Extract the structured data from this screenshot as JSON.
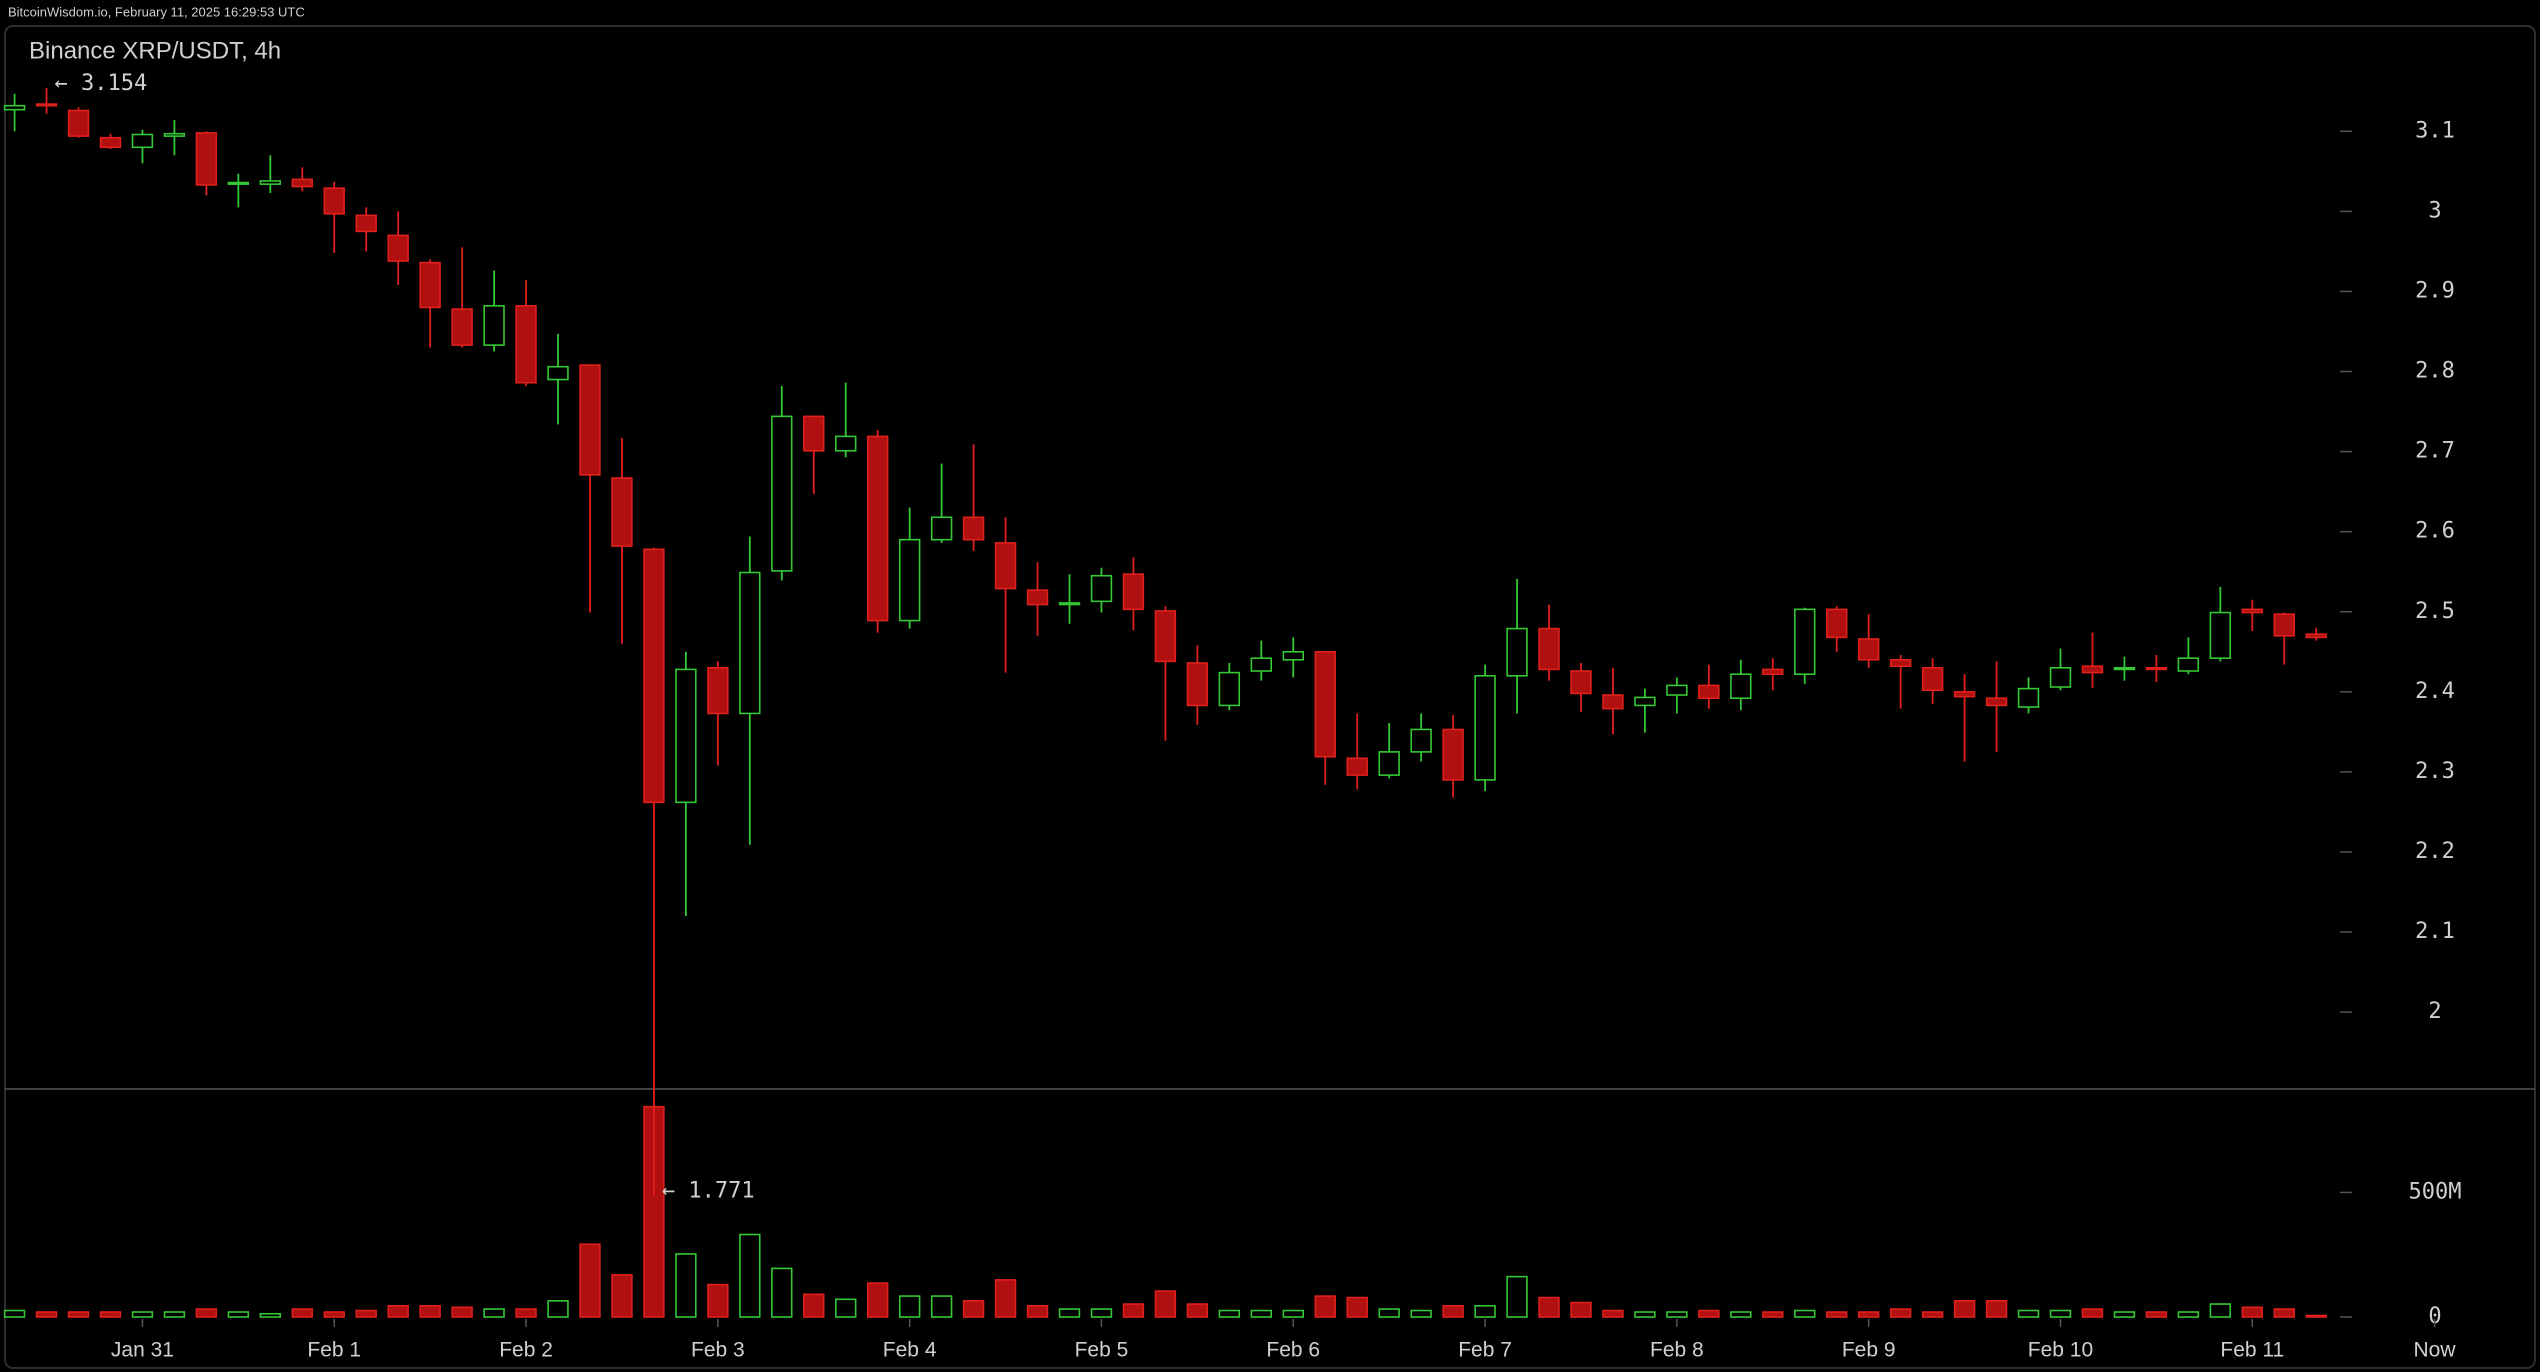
{
  "chart_data": {
    "type": "candlestick",
    "source": "BitcoinWisdom.io, February 11, 2025 16:29:53 UTC",
    "title": "Binance XRP/USDT, 4h",
    "up_color": "#34c834",
    "down_color": "#e0201c",
    "down_fill": "#b01010",
    "open": [
      3.127,
      3.134,
      3.126,
      3.092,
      3.08,
      3.094,
      3.098,
      3.034,
      3.034,
      3.04,
      3.029,
      2.995,
      2.97,
      2.936,
      2.878,
      2.833,
      2.882,
      2.79,
      2.808,
      2.667,
      2.578,
      2.262,
      2.43,
      2.373,
      2.551,
      2.744,
      2.701,
      2.719,
      2.489,
      2.59,
      2.618,
      2.586,
      2.527,
      2.509,
      2.513,
      2.547,
      2.501,
      2.436,
      2.383,
      2.426,
      2.44,
      2.45,
      2.317,
      2.296,
      2.325,
      2.353,
      2.29,
      2.42,
      2.479,
      2.426,
      2.396,
      2.383,
      2.396,
      2.408,
      2.392,
      2.428,
      2.422,
      2.503,
      2.466,
      2.44,
      2.43,
      2.4,
      2.392,
      2.381,
      2.406,
      2.432,
      2.428,
      2.43,
      2.426,
      2.442,
      2.503,
      2.497,
      2.472
    ],
    "high": [
      3.147,
      3.154,
      3.13,
      3.097,
      3.102,
      3.114,
      3.1,
      3.047,
      3.07,
      3.055,
      3.037,
      3.005,
      3.0,
      2.94,
      2.955,
      2.926,
      2.914,
      2.847,
      2.808,
      2.717,
      2.58,
      2.45,
      2.438,
      2.594,
      2.782,
      2.744,
      2.786,
      2.727,
      2.63,
      2.685,
      2.709,
      2.618,
      2.562,
      2.547,
      2.555,
      2.568,
      2.507,
      2.458,
      2.436,
      2.464,
      2.468,
      2.45,
      2.373,
      2.361,
      2.373,
      2.371,
      2.434,
      2.541,
      2.509,
      2.436,
      2.43,
      2.404,
      2.418,
      2.434,
      2.44,
      2.442,
      2.505,
      2.507,
      2.497,
      2.446,
      2.442,
      2.422,
      2.438,
      2.418,
      2.454,
      2.474,
      2.444,
      2.446,
      2.468,
      2.531,
      2.515,
      2.499,
      2.48
    ],
    "low": [
      3.1,
      3.122,
      3.092,
      3.078,
      3.06,
      3.07,
      3.02,
      3.005,
      3.023,
      3.025,
      2.948,
      2.95,
      2.908,
      2.83,
      2.83,
      2.825,
      2.782,
      2.734,
      2.499,
      2.46,
      1.771,
      2.12,
      2.308,
      2.209,
      2.539,
      2.647,
      2.693,
      2.474,
      2.479,
      2.586,
      2.576,
      2.424,
      2.47,
      2.485,
      2.499,
      2.477,
      2.339,
      2.359,
      2.377,
      2.414,
      2.418,
      2.284,
      2.278,
      2.292,
      2.313,
      2.268,
      2.276,
      2.373,
      2.414,
      2.375,
      2.347,
      2.349,
      2.373,
      2.379,
      2.377,
      2.402,
      2.41,
      2.45,
      2.43,
      2.379,
      2.385,
      2.313,
      2.325,
      2.373,
      2.402,
      2.405,
      2.414,
      2.412,
      2.422,
      2.438,
      2.476,
      2.434,
      2.464
    ],
    "close": [
      3.132,
      3.132,
      3.094,
      3.08,
      3.096,
      3.097,
      3.033,
      3.036,
      3.038,
      3.031,
      2.997,
      2.975,
      2.938,
      2.88,
      2.833,
      2.882,
      2.786,
      2.806,
      2.671,
      2.582,
      2.262,
      2.428,
      2.373,
      2.549,
      2.744,
      2.701,
      2.719,
      2.489,
      2.59,
      2.618,
      2.59,
      2.529,
      2.509,
      2.511,
      2.545,
      2.503,
      2.438,
      2.383,
      2.424,
      2.442,
      2.45,
      2.319,
      2.296,
      2.325,
      2.353,
      2.29,
      2.42,
      2.479,
      2.428,
      2.398,
      2.379,
      2.393,
      2.408,
      2.392,
      2.422,
      2.422,
      2.503,
      2.468,
      2.44,
      2.432,
      2.402,
      2.394,
      2.383,
      2.404,
      2.43,
      2.424,
      2.43,
      2.428,
      2.442,
      2.499,
      2.499,
      2.47,
      2.468
    ],
    "volume": [
      26,
      20,
      20,
      20,
      20,
      20,
      32,
      20,
      13,
      32,
      20,
      26,
      45,
      45,
      39,
      32,
      32,
      65,
      292,
      169,
      844,
      253,
      130,
      331,
      195,
      91,
      71,
      136,
      84,
      84,
      65,
      149,
      45,
      32,
      32,
      52,
      104,
      52,
      26,
      26,
      26,
      84,
      78,
      32,
      26,
      45,
      45,
      162,
      78,
      58,
      26,
      20,
      20,
      26,
      20,
      20,
      26,
      20,
      20,
      32,
      20,
      65,
      65,
      26,
      26,
      32,
      20,
      20,
      20,
      52,
      39,
      32,
      6
    ],
    "xlim": [
      -0.456,
      79.0
    ],
    "xticks": [
      {
        "value": 4,
        "label": "Jan 31"
      },
      {
        "value": 10,
        "label": "Feb 1"
      },
      {
        "value": 16,
        "label": "Feb 2"
      },
      {
        "value": 22,
        "label": "Feb 3"
      },
      {
        "value": 28,
        "label": "Feb 4"
      },
      {
        "value": 34,
        "label": "Feb 5"
      },
      {
        "value": 40,
        "label": "Feb 6"
      },
      {
        "value": 46,
        "label": "Feb 7"
      },
      {
        "value": 52,
        "label": "Feb 8"
      },
      {
        "value": 58,
        "label": "Feb 9"
      },
      {
        "value": 64,
        "label": "Feb 10"
      },
      {
        "value": 70,
        "label": "Feb 11"
      },
      {
        "value": 75.7,
        "label": "Now"
      }
    ],
    "ylim": [
      1.904,
      3.234
    ],
    "yticks": [
      2,
      2.1,
      2.2,
      2.3,
      2.4,
      2.5,
      2.6,
      2.7,
      2.8,
      2.9,
      3,
      3.1
    ],
    "volume_ylim": [
      0,
      915
    ],
    "volume_ticks": [
      0,
      {
        "value": 500,
        "label": "500M"
      }
    ],
    "annotations": [
      {
        "value": 3.154,
        "label": "← 3.154"
      },
      {
        "value": 1.771,
        "label": "← 1.771"
      }
    ]
  }
}
